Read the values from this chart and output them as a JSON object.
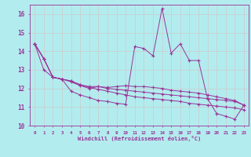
{
  "xlabel": "Windchill (Refroidissement éolien,°C)",
  "background_color": "#b3ecee",
  "grid_color": "#cccccc",
  "line_color": "#993399",
  "xlim": [
    -0.5,
    23.5
  ],
  "ylim": [
    10,
    16.5
  ],
  "yticks": [
    10,
    11,
    12,
    13,
    14,
    15,
    16
  ],
  "xticks": [
    0,
    1,
    2,
    3,
    4,
    5,
    6,
    7,
    8,
    9,
    10,
    11,
    12,
    13,
    14,
    15,
    16,
    17,
    18,
    19,
    20,
    21,
    22,
    23
  ],
  "series": [
    [
      14.4,
      13.6,
      12.6,
      12.5,
      11.85,
      11.65,
      11.5,
      11.35,
      11.3,
      11.2,
      11.15,
      14.25,
      14.15,
      13.75,
      16.3,
      13.9,
      14.4,
      13.5,
      13.5,
      11.45,
      10.65,
      10.5,
      10.35,
      11.1
    ],
    [
      14.4,
      13.0,
      12.6,
      12.5,
      12.35,
      12.15,
      12.0,
      12.1,
      12.05,
      12.1,
      12.15,
      12.1,
      12.1,
      12.05,
      12.0,
      11.9,
      11.85,
      11.8,
      11.75,
      11.65,
      11.55,
      11.45,
      11.35,
      11.1
    ],
    [
      14.4,
      13.6,
      12.6,
      12.5,
      12.4,
      12.2,
      12.1,
      12.1,
      12.0,
      11.95,
      11.9,
      11.85,
      11.8,
      11.75,
      11.7,
      11.65,
      11.6,
      11.55,
      11.5,
      11.45,
      11.4,
      11.35,
      11.3,
      11.1
    ],
    [
      14.4,
      13.6,
      12.6,
      12.5,
      12.4,
      12.2,
      12.05,
      11.95,
      11.85,
      11.75,
      11.65,
      11.55,
      11.5,
      11.45,
      11.4,
      11.35,
      11.3,
      11.2,
      11.15,
      11.1,
      11.05,
      11.0,
      10.95,
      10.85
    ]
  ]
}
